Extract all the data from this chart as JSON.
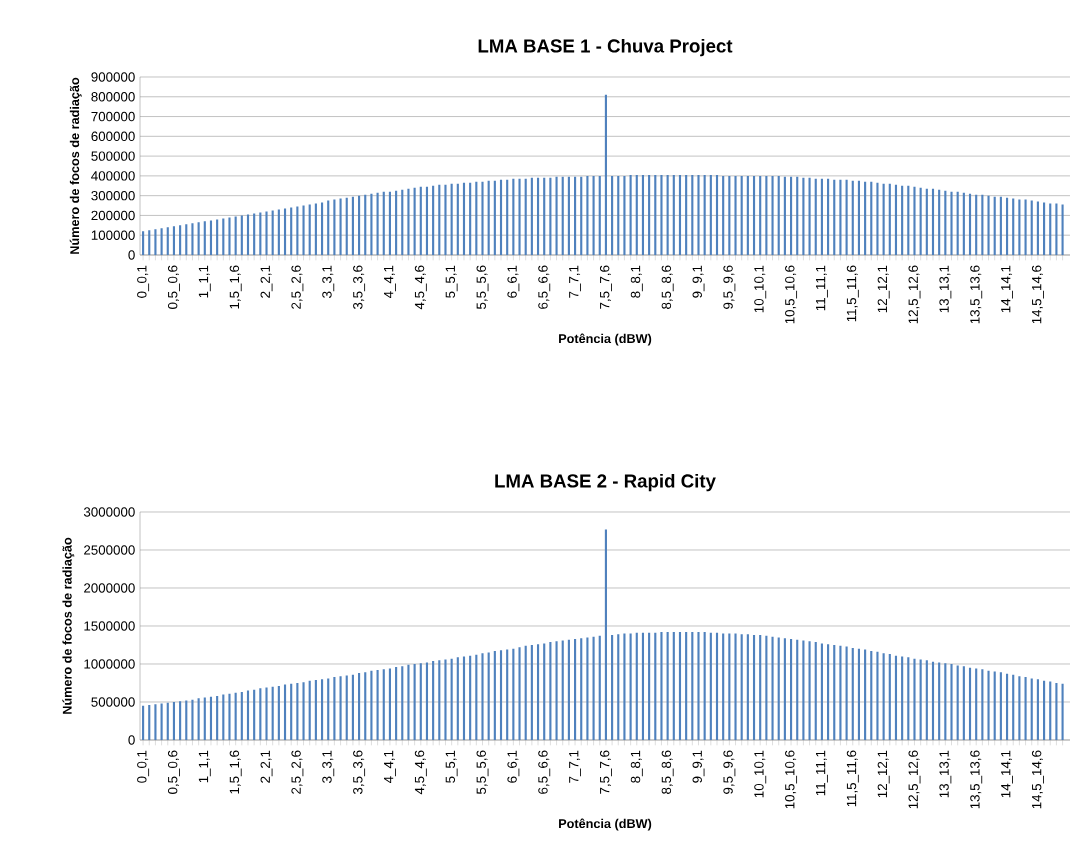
{
  "chart_data": [
    {
      "type": "bar",
      "title": "LMA BASE 1 - Chuva Project",
      "xlabel": "Potência (dBW)",
      "ylabel": "Número de focos de radiação",
      "categories": [
        "0_0,1",
        null,
        null,
        null,
        null,
        "0,5_0,6",
        null,
        null,
        null,
        null,
        "1_1,1",
        null,
        null,
        null,
        null,
        "1,5_1,6",
        null,
        null,
        null,
        null,
        "2_2,1",
        null,
        null,
        null,
        null,
        "2,5_2,6",
        null,
        null,
        null,
        null,
        "3_3,1",
        null,
        null,
        null,
        null,
        "3,5_3,6",
        null,
        null,
        null,
        null,
        "4_4,1",
        null,
        null,
        null,
        null,
        "4,5_4,6",
        null,
        null,
        null,
        null,
        "5_5,1",
        null,
        null,
        null,
        null,
        "5,5_5,6",
        null,
        null,
        null,
        null,
        "6_6,1",
        null,
        null,
        null,
        null,
        "6,5_6,6",
        null,
        null,
        null,
        null,
        "7_7,1",
        null,
        null,
        null,
        null,
        "7,5_7,6",
        null,
        null,
        null,
        null,
        "8_8,1",
        null,
        null,
        null,
        null,
        "8,5_8,6",
        null,
        null,
        null,
        null,
        "9_9,1",
        null,
        null,
        null,
        null,
        "9,5_9,6",
        null,
        null,
        null,
        null,
        "10_10,1",
        null,
        null,
        null,
        null,
        "10,5_10,6",
        null,
        null,
        null,
        null,
        "11_11,1",
        null,
        null,
        null,
        null,
        "11,5_11,6",
        null,
        null,
        null,
        null,
        "12_12,1",
        null,
        null,
        null,
        null,
        "12,5_12,6",
        null,
        null,
        null,
        null,
        "13_13,1",
        null,
        null,
        null,
        null,
        "13,5_13,6",
        null,
        null,
        null,
        null,
        "14_14,1",
        null,
        null,
        null,
        null,
        "14,5_14,6",
        null,
        null,
        null,
        null
      ],
      "values": [
        120000,
        125000,
        130000,
        135000,
        140000,
        145000,
        150000,
        155000,
        160000,
        165000,
        170000,
        175000,
        180000,
        185000,
        190000,
        195000,
        200000,
        205000,
        210000,
        215000,
        220000,
        225000,
        230000,
        235000,
        240000,
        245000,
        250000,
        255000,
        260000,
        265000,
        275000,
        280000,
        285000,
        290000,
        295000,
        300000,
        305000,
        310000,
        315000,
        320000,
        320000,
        325000,
        330000,
        335000,
        340000,
        345000,
        345000,
        350000,
        355000,
        355000,
        360000,
        360000,
        365000,
        365000,
        370000,
        370000,
        375000,
        375000,
        380000,
        380000,
        385000,
        385000,
        385000,
        390000,
        390000,
        390000,
        390000,
        395000,
        395000,
        395000,
        395000,
        395000,
        400000,
        400000,
        400000,
        810000,
        400000,
        400000,
        400000,
        405000,
        405000,
        405000,
        405000,
        405000,
        405000,
        405000,
        405000,
        405000,
        405000,
        405000,
        405000,
        405000,
        405000,
        405000,
        400000,
        400000,
        400000,
        400000,
        400000,
        400000,
        400000,
        400000,
        400000,
        400000,
        395000,
        395000,
        395000,
        390000,
        390000,
        385000,
        385000,
        385000,
        380000,
        380000,
        380000,
        375000,
        375000,
        370000,
        370000,
        365000,
        360000,
        360000,
        355000,
        350000,
        350000,
        345000,
        340000,
        335000,
        335000,
        330000,
        325000,
        320000,
        320000,
        315000,
        310000,
        305000,
        305000,
        300000,
        295000,
        295000,
        290000,
        285000,
        280000,
        280000,
        275000,
        270000,
        265000,
        260000,
        260000,
        255000
      ],
      "color": "#4f81bd",
      "ylim": [
        0,
        900000
      ],
      "yticks": [
        0,
        100000,
        200000,
        300000,
        400000,
        500000,
        600000,
        700000,
        800000,
        900000
      ],
      "grid": "y"
    },
    {
      "type": "bar",
      "title": "LMA BASE 2 - Rapid City",
      "xlabel": "Potência (dBW)",
      "ylabel": "Número de focos de radiação",
      "categories": [
        "0_0,1",
        null,
        null,
        null,
        null,
        "0,5_0,6",
        null,
        null,
        null,
        null,
        "1_1,1",
        null,
        null,
        null,
        null,
        "1,5_1,6",
        null,
        null,
        null,
        null,
        "2_2,1",
        null,
        null,
        null,
        null,
        "2,5_2,6",
        null,
        null,
        null,
        null,
        "3_3,1",
        null,
        null,
        null,
        null,
        "3,5_3,6",
        null,
        null,
        null,
        null,
        "4_4,1",
        null,
        null,
        null,
        null,
        "4,5_4,6",
        null,
        null,
        null,
        null,
        "5_5,1",
        null,
        null,
        null,
        null,
        "5,5_5,6",
        null,
        null,
        null,
        null,
        "6_6,1",
        null,
        null,
        null,
        null,
        "6,5_6,6",
        null,
        null,
        null,
        null,
        "7_7,1",
        null,
        null,
        null,
        null,
        "7,5_7,6",
        null,
        null,
        null,
        null,
        "8_8,1",
        null,
        null,
        null,
        null,
        "8,5_8,6",
        null,
        null,
        null,
        null,
        "9_9,1",
        null,
        null,
        null,
        null,
        "9,5_9,6",
        null,
        null,
        null,
        null,
        "10_10,1",
        null,
        null,
        null,
        null,
        "10,5_10,6",
        null,
        null,
        null,
        null,
        "11_11,1",
        null,
        null,
        null,
        null,
        "11,5_11,6",
        null,
        null,
        null,
        null,
        "12_12,1",
        null,
        null,
        null,
        null,
        "12,5_12,6",
        null,
        null,
        null,
        null,
        "13_13,1",
        null,
        null,
        null,
        null,
        "13,5_13,6",
        null,
        null,
        null,
        null,
        "14_14,1",
        null,
        null,
        null,
        null,
        "14,5_14,6",
        null,
        null,
        null,
        null
      ],
      "values": [
        450000,
        460000,
        470000,
        480000,
        490000,
        500000,
        510000,
        520000,
        530000,
        550000,
        560000,
        570000,
        580000,
        600000,
        610000,
        620000,
        630000,
        650000,
        660000,
        680000,
        690000,
        700000,
        710000,
        730000,
        740000,
        750000,
        760000,
        780000,
        790000,
        800000,
        810000,
        830000,
        840000,
        850000,
        860000,
        880000,
        890000,
        910000,
        920000,
        930000,
        940000,
        960000,
        970000,
        990000,
        1000000,
        1010000,
        1020000,
        1040000,
        1050000,
        1060000,
        1070000,
        1090000,
        1100000,
        1110000,
        1120000,
        1140000,
        1150000,
        1170000,
        1180000,
        1190000,
        1200000,
        1220000,
        1240000,
        1250000,
        1260000,
        1270000,
        1290000,
        1300000,
        1310000,
        1320000,
        1330000,
        1340000,
        1350000,
        1360000,
        1370000,
        2770000,
        1380000,
        1390000,
        1400000,
        1400000,
        1410000,
        1410000,
        1410000,
        1410000,
        1420000,
        1420000,
        1420000,
        1420000,
        1420000,
        1420000,
        1420000,
        1420000,
        1410000,
        1410000,
        1400000,
        1400000,
        1400000,
        1390000,
        1390000,
        1380000,
        1380000,
        1370000,
        1360000,
        1350000,
        1340000,
        1330000,
        1320000,
        1310000,
        1300000,
        1290000,
        1270000,
        1260000,
        1250000,
        1240000,
        1230000,
        1210000,
        1200000,
        1190000,
        1170000,
        1160000,
        1140000,
        1130000,
        1110000,
        1100000,
        1090000,
        1070000,
        1060000,
        1050000,
        1030000,
        1020000,
        1010000,
        1000000,
        980000,
        970000,
        950000,
        940000,
        930000,
        910000,
        900000,
        890000,
        870000,
        860000,
        840000,
        830000,
        810000,
        800000,
        780000,
        770000,
        750000,
        740000
      ],
      "color": "#4f81bd",
      "ylim": [
        0,
        3000000
      ],
      "yticks": [
        0,
        500000,
        1000000,
        1500000,
        2000000,
        2500000,
        3000000
      ],
      "grid": "y"
    }
  ]
}
